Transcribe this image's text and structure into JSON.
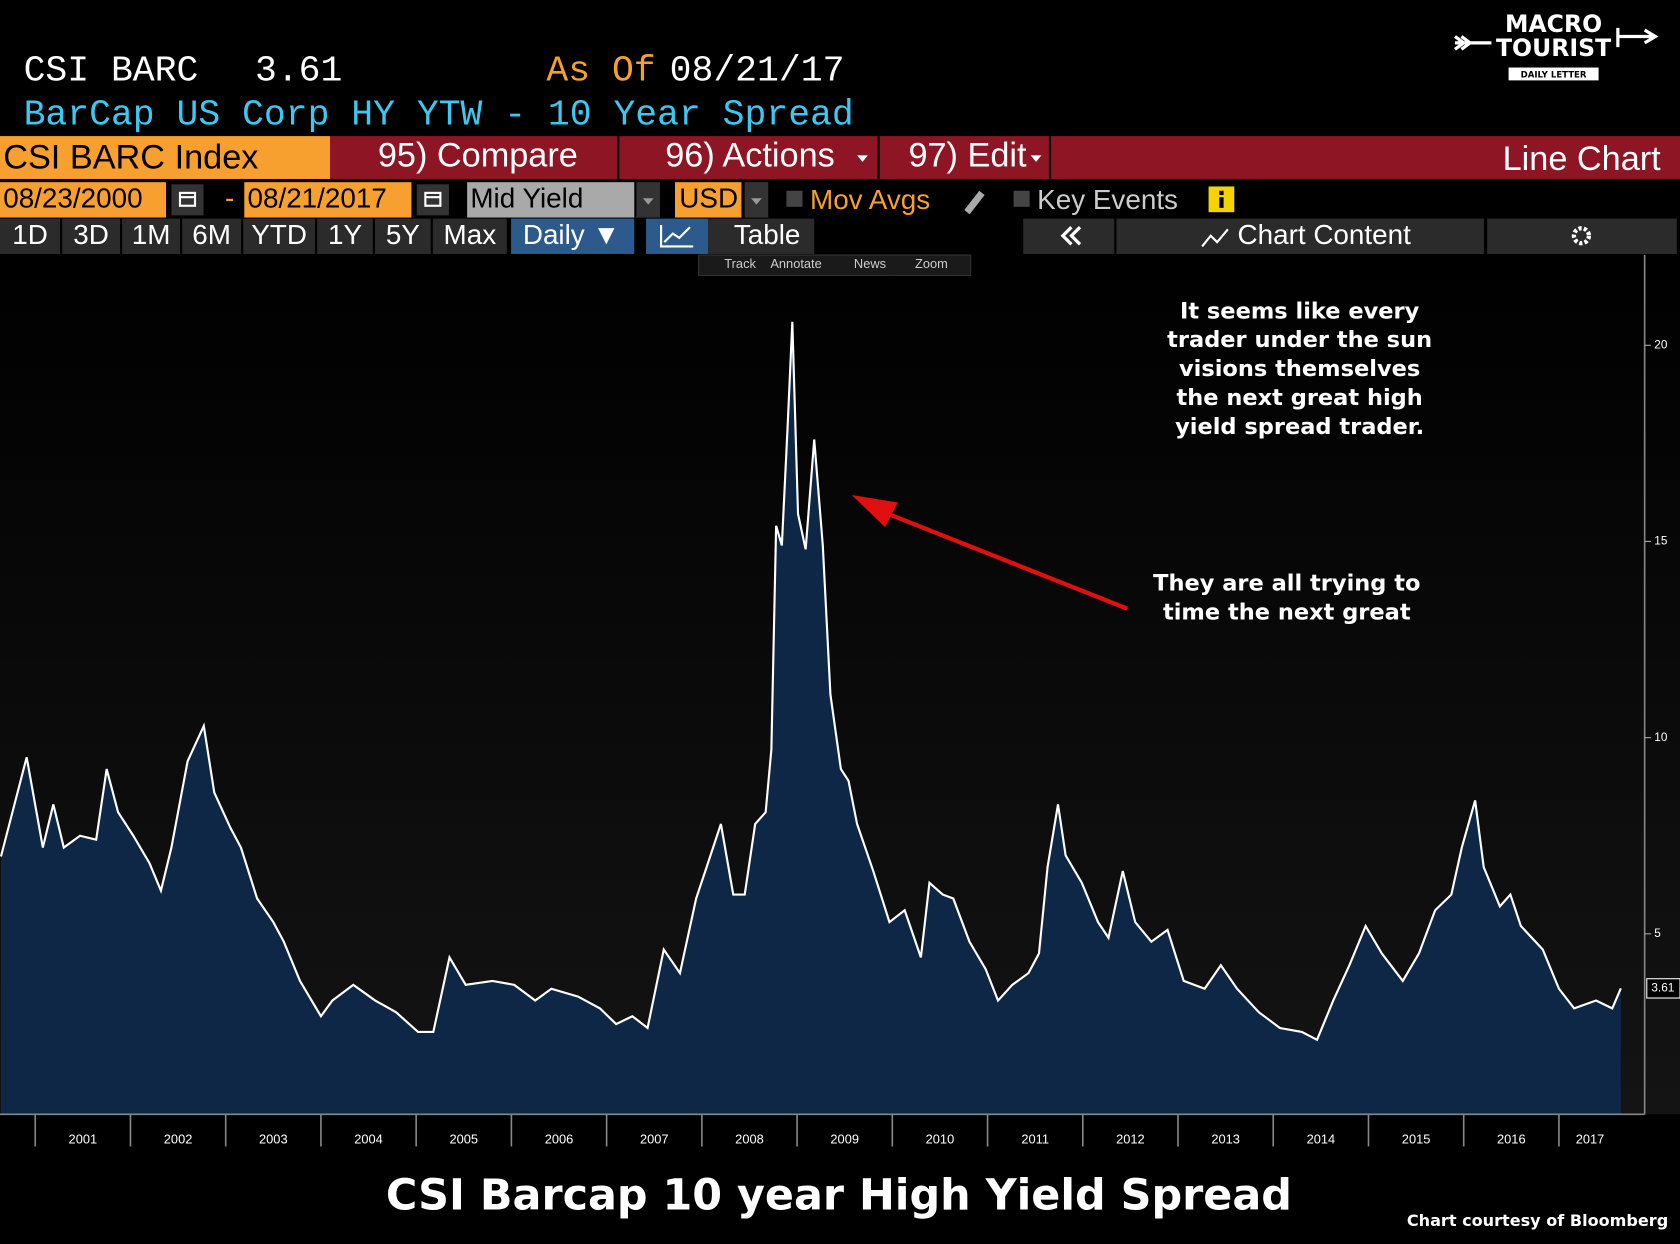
{
  "ui": {
    "ticker": "CSI BARC",
    "as_of_label": "As Of",
    "as_of_date": "08/21/17",
    "subtitle": "BarCap US Corp HY YTW - 10 Year Spread",
    "security": "CSI BARC Index",
    "compare": "95) Compare",
    "actions": "96) Actions",
    "edit": "97) Edit",
    "chart_kind": "Line Chart",
    "start_date": "08/23/2000",
    "date_sep": "-",
    "end_date": "08/21/2017",
    "field": "Mid Yield",
    "currency": "USD",
    "mov_avgs": "Mov Avgs",
    "key_events": "Key Events",
    "periods": [
      "1D",
      "3D",
      "1M",
      "6M",
      "YTD",
      "1Y",
      "5Y",
      "Max"
    ],
    "frequency": "Daily ▼",
    "table": "Table",
    "chart_content": "Chart Content",
    "tools": [
      "Track",
      "Annotate",
      "News",
      "Zoom"
    ],
    "logo": {
      "line1": "MACRO",
      "line2": "TOURIST",
      "line3": "DAILY LETTER"
    },
    "credit": "Chart courtesy of Bloomberg"
  },
  "chart_data": {
    "type": "area",
    "title": "CSI Barcap 10 year High Yield Spread",
    "annotations": [
      [
        "It seems like every",
        "trader under the sun",
        "visions themselves",
        "the next great high",
        "yield spread trader."
      ],
      [
        "They are all trying to",
        "time the next great"
      ]
    ],
    "x": [
      2000.64,
      2000.91,
      2001.08,
      2001.19,
      2001.3,
      2001.47,
      2001.64,
      2001.75,
      2001.87,
      2002.03,
      2002.2,
      2002.32,
      2002.43,
      2002.6,
      2002.77,
      2002.88,
      2003.05,
      2003.16,
      2003.33,
      2003.5,
      2003.61,
      2003.78,
      2004.0,
      2004.12,
      2004.34,
      2004.57,
      2004.79,
      2005.02,
      2005.18,
      2005.35,
      2005.52,
      2005.8,
      2006.03,
      2006.25,
      2006.42,
      2006.7,
      2006.93,
      2007.1,
      2007.27,
      2007.43,
      2007.6,
      2007.77,
      2007.94,
      2008.05,
      2008.2,
      2008.33,
      2008.45,
      2008.56,
      2008.67,
      2008.73,
      2008.78,
      2008.84,
      2008.9,
      2008.95,
      2009.01,
      2009.09,
      2009.18,
      2009.27,
      2009.35,
      2009.46,
      2009.54,
      2009.63,
      2009.8,
      2009.97,
      2010.13,
      2010.3,
      2010.39,
      2010.53,
      2010.64,
      2010.81,
      2010.98,
      2011.11,
      2011.26,
      2011.43,
      2011.54,
      2011.63,
      2011.74,
      2011.82,
      2011.99,
      2012.16,
      2012.27,
      2012.42,
      2012.55,
      2012.72,
      2012.89,
      2013.06,
      2013.28,
      2013.45,
      2013.62,
      2013.85,
      2014.07,
      2014.3,
      2014.46,
      2014.63,
      2014.8,
      2014.97,
      2015.14,
      2015.36,
      2015.53,
      2015.7,
      2015.87,
      2015.98,
      2016.12,
      2016.21,
      2016.38,
      2016.49,
      2016.6,
      2016.83,
      2017.0,
      2017.16,
      2017.39,
      2017.56,
      2017.65
    ],
    "values": [
      6.97,
      9.5,
      7.2,
      8.3,
      7.2,
      7.5,
      7.4,
      9.2,
      8.1,
      7.5,
      6.8,
      6.1,
      7.2,
      9.4,
      10.3,
      8.6,
      7.7,
      7.2,
      5.9,
      5.3,
      4.8,
      3.8,
      2.9,
      3.3,
      3.7,
      3.3,
      3.0,
      2.5,
      2.5,
      4.4,
      3.7,
      3.8,
      3.7,
      3.3,
      3.6,
      3.4,
      3.1,
      2.7,
      2.9,
      2.6,
      4.6,
      4.0,
      5.9,
      6.7,
      7.8,
      6.0,
      6.0,
      7.8,
      8.1,
      9.7,
      15.4,
      14.9,
      17.9,
      20.6,
      15.7,
      14.8,
      17.6,
      14.9,
      11.1,
      9.2,
      8.9,
      7.8,
      6.6,
      5.3,
      5.6,
      4.4,
      6.3,
      6.0,
      5.9,
      4.8,
      4.1,
      3.3,
      3.7,
      4.0,
      4.5,
      6.7,
      8.3,
      7.0,
      6.3,
      5.3,
      4.9,
      6.6,
      5.3,
      4.8,
      5.1,
      3.8,
      3.6,
      4.2,
      3.6,
      3.0,
      2.6,
      2.5,
      2.3,
      3.3,
      4.2,
      5.2,
      4.5,
      3.8,
      4.5,
      5.6,
      6.0,
      7.2,
      8.4,
      6.7,
      5.7,
      6.0,
      5.2,
      4.6,
      3.6,
      3.1,
      3.3,
      3.1,
      3.61
    ],
    "color": "#0f2747",
    "line_color": "#ffffff",
    "xlim": [
      2000.63,
      2017.9
    ],
    "xticks": [
      2001,
      2002,
      2003,
      2004,
      2005,
      2006,
      2007,
      2008,
      2009,
      2010,
      2011,
      2012,
      2013,
      2014,
      2015,
      2016,
      2017
    ],
    "ylim": [
      0.4,
      22.3
    ],
    "yticks": [
      5,
      10,
      15,
      20
    ],
    "y_axis_side": "right"
  }
}
